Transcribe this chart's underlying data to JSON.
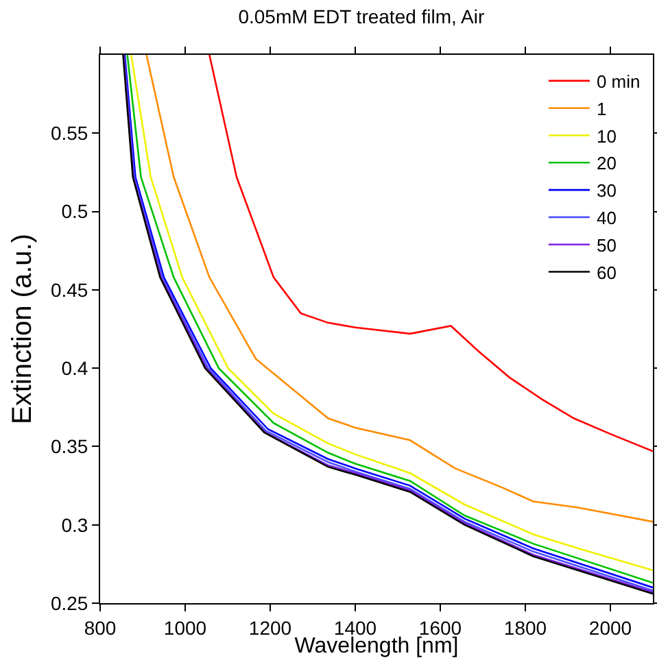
{
  "chart_data": {
    "type": "line",
    "title": "0.05mM EDT treated film, Air",
    "xlabel": "Wavelength [nm]",
    "ylabel": "Extinction (a.u.)",
    "xlim": [
      800,
      2100
    ],
    "xticks": [
      800,
      1000,
      1200,
      1400,
      1600,
      1800,
      2000
    ],
    "ylim": [
      0.25,
      0.6
    ],
    "yticks": [
      0.25,
      0.3,
      0.35,
      0.4,
      0.45,
      0.5,
      0.55
    ],
    "grid": false,
    "legend": "top right",
    "marker": "none",
    "line_style": "solid",
    "series": [
      {
        "name": "0 min",
        "color": "#ff0000",
        "x": [
          1057,
          1121,
          1208,
          1272,
          1336,
          1400,
          1529,
          1625,
          1689,
          1763,
          1840,
          1914,
          2000,
          2100
        ],
        "values": [
          0.6,
          0.522,
          0.458,
          0.435,
          0.429,
          0.426,
          0.422,
          0.427,
          0.411,
          0.394,
          0.38,
          0.368,
          0.358,
          0.347
        ]
      },
      {
        "name": "1",
        "color": "#ff8c00",
        "x": [
          909,
          973,
          1057,
          1166,
          1336,
          1400,
          1529,
          1635,
          1744,
          1818,
          1924,
          2100
        ],
        "values": [
          0.6,
          0.522,
          0.458,
          0.406,
          0.368,
          0.362,
          0.354,
          0.336,
          0.324,
          0.315,
          0.311,
          0.302
        ]
      },
      {
        "name": "10",
        "color": "#f0f000",
        "x": [
          873,
          919,
          993,
          1101,
          1208,
          1336,
          1400,
          1529,
          1657,
          1818,
          1924,
          2100
        ],
        "values": [
          0.6,
          0.522,
          0.458,
          0.4,
          0.371,
          0.352,
          0.345,
          0.333,
          0.313,
          0.294,
          0.285,
          0.271
        ]
      },
      {
        "name": "20",
        "color": "#00c000",
        "x": [
          864,
          896,
          973,
          1079,
          1208,
          1336,
          1400,
          1529,
          1657,
          1818,
          2100
        ],
        "values": [
          0.6,
          0.522,
          0.458,
          0.4,
          0.365,
          0.346,
          0.339,
          0.328,
          0.306,
          0.288,
          0.263
        ]
      },
      {
        "name": "30",
        "color": "#0000ff",
        "x": [
          858,
          883,
          950,
          1060,
          1195,
          1336,
          1400,
          1529,
          1657,
          1818,
          2100
        ],
        "values": [
          0.6,
          0.522,
          0.458,
          0.4,
          0.361,
          0.342,
          0.336,
          0.325,
          0.304,
          0.285,
          0.26
        ]
      },
      {
        "name": "40",
        "color": "#5050ff",
        "x": [
          856,
          880,
          946,
          1054,
          1190,
          1336,
          1400,
          1529,
          1657,
          1818,
          2100
        ],
        "values": [
          0.6,
          0.522,
          0.458,
          0.4,
          0.36,
          0.34,
          0.334,
          0.323,
          0.302,
          0.283,
          0.258
        ]
      },
      {
        "name": "50",
        "color": "#8020e0",
        "x": [
          855,
          878,
          943,
          1050,
          1188,
          1336,
          1400,
          1529,
          1657,
          1818,
          2100
        ],
        "values": [
          0.6,
          0.522,
          0.458,
          0.4,
          0.359,
          0.338,
          0.333,
          0.322,
          0.301,
          0.281,
          0.257
        ]
      },
      {
        "name": "60",
        "color": "#000000",
        "x": [
          854,
          877,
          941,
          1047,
          1186,
          1336,
          1400,
          1529,
          1657,
          1818,
          2100
        ],
        "values": [
          0.6,
          0.522,
          0.458,
          0.4,
          0.359,
          0.337,
          0.332,
          0.321,
          0.3,
          0.28,
          0.256
        ]
      }
    ]
  }
}
